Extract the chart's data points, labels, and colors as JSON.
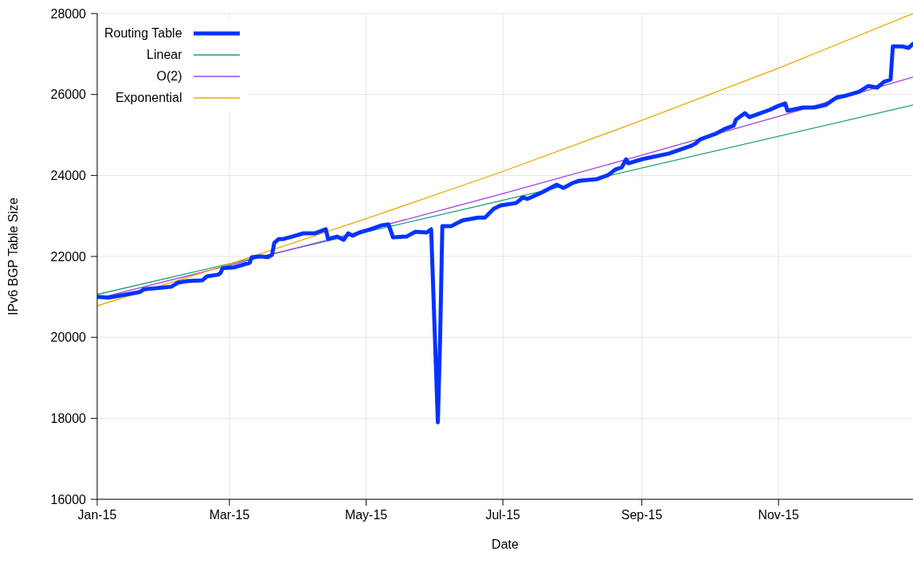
{
  "chart_data": {
    "type": "line",
    "xlabel": "Date",
    "ylabel": "IPv6 BGP Table Size",
    "xlim": [
      "2015-01-01",
      "2015-12-31"
    ],
    "xticks": [
      {
        "value": "2015-01-01",
        "label": "Jan-15"
      },
      {
        "value": "2015-03-01",
        "label": "Mar-15"
      },
      {
        "value": "2015-05-01",
        "label": "May-15"
      },
      {
        "value": "2015-07-01",
        "label": "Jul-15"
      },
      {
        "value": "2015-09-01",
        "label": "Sep-15"
      },
      {
        "value": "2015-11-01",
        "label": "Nov-15"
      }
    ],
    "ylim": [
      16000,
      28000
    ],
    "yticks": [
      16000,
      18000,
      20000,
      22000,
      24000,
      26000,
      28000
    ],
    "grid": true,
    "legend": "top left",
    "marker": "none",
    "series": [
      {
        "name": "Routing Table",
        "color": "#0433ff",
        "x": [
          "2015-01-01",
          "2015-01-06",
          "2015-01-10",
          "2015-01-20",
          "2015-01-22",
          "2015-02-03",
          "2015-02-06",
          "2015-02-10",
          "2015-02-17",
          "2015-02-19",
          "2015-02-24",
          "2015-02-25",
          "2015-02-26",
          "2015-03-03",
          "2015-03-10",
          "2015-03-11",
          "2015-03-15",
          "2015-03-18",
          "2015-03-20",
          "2015-03-21",
          "2015-03-23",
          "2015-03-25",
          "2015-03-29",
          "2015-04-03",
          "2015-04-08",
          "2015-04-13",
          "2015-04-14",
          "2015-04-18",
          "2015-04-21",
          "2015-04-23",
          "2015-04-25",
          "2015-04-28",
          "2015-05-03",
          "2015-05-08",
          "2015-05-11",
          "2015-05-13",
          "2015-05-19",
          "2015-05-23",
          "2015-05-28",
          "2015-05-30",
          "2015-06-02",
          "2015-06-03",
          "2015-06-04",
          "2015-06-08",
          "2015-06-13",
          "2015-06-20",
          "2015-06-23",
          "2015-06-27",
          "2015-06-30",
          "2015-07-07",
          "2015-07-10",
          "2015-07-12",
          "2015-07-18",
          "2015-07-25",
          "2015-07-28",
          "2015-08-01",
          "2015-08-04",
          "2015-08-12",
          "2015-08-17",
          "2015-08-20",
          "2015-08-23",
          "2015-08-25",
          "2015-08-26",
          "2015-09-01",
          "2015-09-06",
          "2015-09-13",
          "2015-09-23",
          "2015-09-25",
          "2015-09-27",
          "2015-10-04",
          "2015-10-08",
          "2015-10-12",
          "2015-10-13",
          "2015-10-17",
          "2015-10-19",
          "2015-10-21",
          "2015-10-28",
          "2015-11-01",
          "2015-11-04",
          "2015-11-05",
          "2015-11-12",
          "2015-11-17",
          "2015-11-22",
          "2015-11-27",
          "2015-12-01",
          "2015-12-07",
          "2015-12-11",
          "2015-12-15",
          "2015-12-18",
          "2015-12-21",
          "2015-12-22",
          "2015-12-26",
          "2015-12-29",
          "2015-12-31"
        ],
        "values": [
          21000,
          20980,
          21020,
          21120,
          21190,
          21250,
          21350,
          21390,
          21410,
          21510,
          21550,
          21590,
          21710,
          21730,
          21840,
          21980,
          22000,
          21980,
          22040,
          22330,
          22430,
          22430,
          22490,
          22570,
          22570,
          22670,
          22430,
          22490,
          22410,
          22570,
          22510,
          22590,
          22670,
          22770,
          22790,
          22470,
          22490,
          22610,
          22590,
          22670,
          17900,
          19940,
          22750,
          22750,
          22890,
          22960,
          22960,
          23180,
          23260,
          23320,
          23460,
          23420,
          23570,
          23770,
          23690,
          23810,
          23870,
          23910,
          24010,
          24140,
          24200,
          24400,
          24300,
          24400,
          24460,
          24540,
          24730,
          24790,
          24890,
          25030,
          25150,
          25230,
          25380,
          25540,
          25440,
          25480,
          25620,
          25720,
          25780,
          25600,
          25680,
          25680,
          25740,
          25930,
          25970,
          26070,
          26210,
          26170,
          26310,
          26370,
          27190,
          27190,
          27150,
          27250
        ]
      },
      {
        "name": "Linear",
        "color": "#1b9e77",
        "x": [
          "2015-01-01",
          "2015-12-31"
        ],
        "values": [
          21060,
          25740
        ]
      },
      {
        "name": "O(2)",
        "color": "#a040e0",
        "x": [
          "2015-01-01",
          "2015-03-01",
          "2015-05-01",
          "2015-07-01",
          "2015-09-01",
          "2015-11-01",
          "2015-12-31"
        ],
        "values": [
          20960,
          21780,
          22650,
          23550,
          24500,
          25460,
          26430
        ]
      },
      {
        "name": "Exponential",
        "color": "#f0a800",
        "x": [
          "2015-01-01",
          "2015-03-01",
          "2015-05-01",
          "2015-07-01",
          "2015-09-01",
          "2015-11-01",
          "2015-12-31"
        ],
        "values": [
          20780,
          21810,
          22930,
          24100,
          25360,
          26650,
          28000
        ]
      }
    ]
  }
}
